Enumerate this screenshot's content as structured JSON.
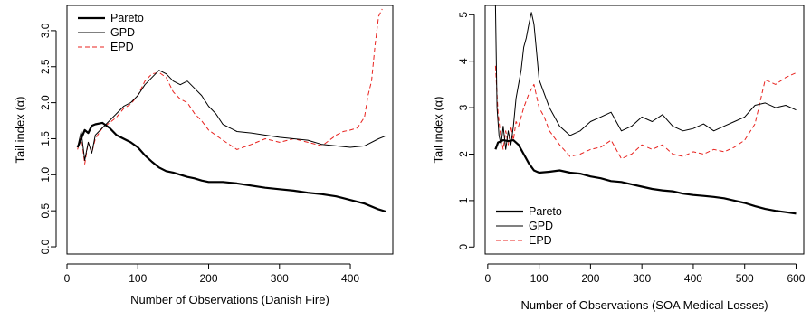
{
  "chart_data": [
    {
      "type": "line",
      "xlabel": "Number of Observations (Danish Fire)",
      "ylabel": "Tail index (α)",
      "xlim": [
        0,
        460
      ],
      "ylim": [
        -0.1,
        3.35
      ],
      "xticks": [
        0,
        100,
        200,
        300,
        400
      ],
      "yticks": [
        0.0,
        0.5,
        1.0,
        1.5,
        2.0,
        2.5,
        3.0
      ],
      "ytick_labels": [
        "0.0",
        "0.5",
        "1.0",
        "1.5",
        "2.0",
        "2.5",
        "3.0"
      ],
      "grid": false,
      "legend_position": "top-left",
      "series": [
        {
          "name": "Pareto",
          "style": "thick-solid",
          "color": "#000000",
          "x": [
            15,
            20,
            25,
            30,
            35,
            40,
            50,
            60,
            70,
            80,
            90,
            100,
            110,
            120,
            130,
            140,
            150,
            160,
            170,
            180,
            190,
            200,
            220,
            240,
            260,
            280,
            300,
            320,
            340,
            360,
            380,
            400,
            420,
            440,
            450
          ],
          "y": [
            1.38,
            1.5,
            1.62,
            1.58,
            1.68,
            1.7,
            1.72,
            1.65,
            1.55,
            1.5,
            1.45,
            1.38,
            1.27,
            1.18,
            1.1,
            1.05,
            1.03,
            1.0,
            0.97,
            0.95,
            0.92,
            0.9,
            0.9,
            0.88,
            0.85,
            0.82,
            0.8,
            0.78,
            0.75,
            0.73,
            0.7,
            0.65,
            0.6,
            0.52,
            0.49
          ]
        },
        {
          "name": "GPD",
          "style": "thin-solid",
          "color": "#000000",
          "x": [
            15,
            20,
            25,
            30,
            35,
            40,
            50,
            60,
            70,
            80,
            90,
            100,
            110,
            120,
            130,
            140,
            150,
            160,
            170,
            180,
            190,
            200,
            210,
            220,
            240,
            260,
            280,
            300,
            320,
            340,
            360,
            380,
            400,
            420,
            440,
            450
          ],
          "y": [
            1.38,
            1.6,
            1.2,
            1.45,
            1.3,
            1.55,
            1.65,
            1.75,
            1.85,
            1.95,
            2.0,
            2.1,
            2.25,
            2.35,
            2.45,
            2.4,
            2.3,
            2.25,
            2.3,
            2.2,
            2.1,
            1.95,
            1.85,
            1.7,
            1.6,
            1.58,
            1.55,
            1.52,
            1.5,
            1.48,
            1.42,
            1.4,
            1.38,
            1.4,
            1.5,
            1.54
          ]
        },
        {
          "name": "EPD",
          "style": "dashed",
          "color": "#e8231f",
          "x": [
            15,
            20,
            25,
            30,
            35,
            40,
            50,
            60,
            70,
            80,
            90,
            100,
            110,
            120,
            130,
            140,
            150,
            160,
            170,
            180,
            190,
            200,
            210,
            220,
            240,
            260,
            280,
            300,
            320,
            340,
            360,
            380,
            390,
            400,
            410,
            420,
            425,
            430,
            435,
            440,
            445
          ],
          "y": [
            1.35,
            1.55,
            1.15,
            1.45,
            1.3,
            1.5,
            1.65,
            1.72,
            1.8,
            1.92,
            1.98,
            2.1,
            2.3,
            2.4,
            2.42,
            2.35,
            2.15,
            2.05,
            2.0,
            1.85,
            1.75,
            1.62,
            1.55,
            1.48,
            1.35,
            1.42,
            1.5,
            1.45,
            1.5,
            1.45,
            1.4,
            1.55,
            1.6,
            1.62,
            1.65,
            1.8,
            2.1,
            2.3,
            2.8,
            3.2,
            3.3
          ]
        }
      ]
    },
    {
      "type": "line",
      "xlabel": "Number of Observations (SOA Medical Losses)",
      "ylabel": "Tail index (α)",
      "xlim": [
        -5,
        615
      ],
      "ylim": [
        -0.15,
        5.2
      ],
      "xticks": [
        0,
        100,
        200,
        300,
        400,
        500,
        600
      ],
      "yticks": [
        0,
        1,
        2,
        3,
        4,
        5
      ],
      "ytick_labels": [
        "0",
        "1",
        "2",
        "3",
        "4",
        "5"
      ],
      "grid": false,
      "legend_position": "bottom-left",
      "series": [
        {
          "name": "Pareto",
          "style": "thick-solid",
          "color": "#000000",
          "x": [
            15,
            20,
            30,
            40,
            50,
            60,
            70,
            80,
            90,
            100,
            120,
            140,
            160,
            180,
            200,
            220,
            240,
            260,
            280,
            300,
            320,
            340,
            360,
            380,
            400,
            420,
            440,
            460,
            480,
            500,
            520,
            540,
            560,
            580,
            600
          ],
          "y": [
            2.1,
            2.25,
            2.3,
            2.28,
            2.3,
            2.2,
            2.0,
            1.8,
            1.65,
            1.6,
            1.62,
            1.65,
            1.6,
            1.58,
            1.52,
            1.48,
            1.42,
            1.4,
            1.35,
            1.3,
            1.25,
            1.22,
            1.2,
            1.15,
            1.12,
            1.1,
            1.08,
            1.05,
            1.0,
            0.95,
            0.88,
            0.82,
            0.78,
            0.75,
            0.72
          ]
        },
        {
          "name": "GPD",
          "style": "thin-solid",
          "color": "#000000",
          "x": [
            15,
            18,
            22,
            26,
            30,
            35,
            40,
            45,
            50,
            55,
            60,
            65,
            70,
            75,
            80,
            85,
            90,
            95,
            100,
            110,
            120,
            140,
            160,
            180,
            200,
            220,
            240,
            260,
            280,
            300,
            320,
            340,
            360,
            380,
            400,
            420,
            440,
            460,
            480,
            500,
            520,
            540,
            560,
            580,
            600
          ],
          "y": [
            5.2,
            3.0,
            2.4,
            2.2,
            2.6,
            2.1,
            2.5,
            2.2,
            2.6,
            3.2,
            3.5,
            3.8,
            4.3,
            4.5,
            4.8,
            5.05,
            4.8,
            4.2,
            3.6,
            3.3,
            3.0,
            2.6,
            2.4,
            2.5,
            2.7,
            2.8,
            2.9,
            2.5,
            2.6,
            2.8,
            2.7,
            2.85,
            2.6,
            2.5,
            2.55,
            2.65,
            2.5,
            2.6,
            2.7,
            2.8,
            3.05,
            3.1,
            3.0,
            3.05,
            2.95
          ]
        },
        {
          "name": "EPD",
          "style": "dashed",
          "color": "#e8231f",
          "x": [
            15,
            20,
            25,
            30,
            35,
            40,
            45,
            50,
            55,
            60,
            70,
            80,
            90,
            100,
            110,
            120,
            140,
            160,
            180,
            200,
            220,
            240,
            260,
            280,
            300,
            320,
            340,
            360,
            380,
            400,
            420,
            440,
            460,
            480,
            500,
            520,
            540,
            560,
            580,
            600
          ],
          "y": [
            3.9,
            2.9,
            2.4,
            2.1,
            2.5,
            2.2,
            2.6,
            2.3,
            2.7,
            2.6,
            3.0,
            3.3,
            3.5,
            3.0,
            2.8,
            2.5,
            2.2,
            1.95,
            2.0,
            2.1,
            2.15,
            2.3,
            1.9,
            2.0,
            2.2,
            2.1,
            2.2,
            2.0,
            1.95,
            2.05,
            2.0,
            2.1,
            2.05,
            2.15,
            2.3,
            2.65,
            3.6,
            3.5,
            3.65,
            3.75
          ]
        }
      ]
    }
  ]
}
